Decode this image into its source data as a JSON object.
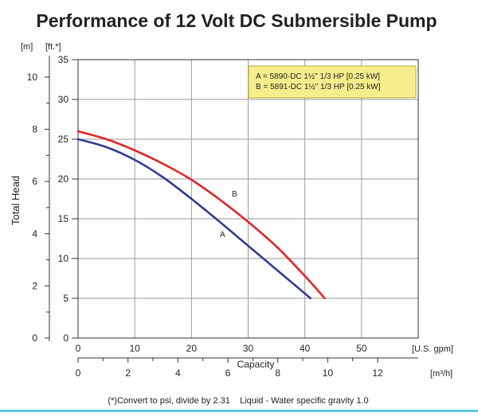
{
  "colors": {
    "grid": "#9a9a9a",
    "series_a": "#2f3d94",
    "series_b": "#e02525",
    "legend_fill": "#f6ee8c",
    "legend_border": "#b8ad3c",
    "accent_line": "#5ac8ee"
  },
  "chart_data": {
    "type": "line",
    "title": "Performance of 12 Volt DC Submersible Pump",
    "ylabel": "Total Head",
    "xlabel": "Capacity",
    "footnote": "(*)Convert to psi, divide by 2.31    Liquid - Water specific gravity 1.0",
    "y_ft": {
      "unit": "[ft.*]",
      "ticks": [
        0,
        5,
        10,
        15,
        20,
        25,
        30,
        35
      ],
      "ylim": [
        0,
        35
      ]
    },
    "y_m": {
      "unit": "[m]",
      "ticks": [
        0,
        2,
        4,
        6,
        8,
        10
      ]
    },
    "x_gpm": {
      "unit": "[U.S. gpm]",
      "ticks": [
        0,
        10,
        20,
        30,
        40,
        50
      ],
      "xlim": [
        0,
        60
      ]
    },
    "x_m3h": {
      "unit": "[m³/h]",
      "ticks": [
        0,
        2,
        4,
        6,
        8,
        10,
        12
      ]
    },
    "legend": {
      "a": "A = 5890-DC 1½\" 1/3 HP [0.25 kW]",
      "b": "B = 5891-DC 1½\" 1/3 HP [0.25 kW]"
    },
    "series": [
      {
        "name": "A",
        "x": [
          0,
          5,
          10,
          15,
          20,
          25,
          30,
          35,
          41
        ],
        "y": [
          25,
          24,
          22.4,
          20.2,
          17.5,
          14.6,
          11.6,
          8.6,
          5
        ]
      },
      {
        "name": "B",
        "x": [
          0,
          5,
          10,
          15,
          20,
          25,
          30,
          35,
          40,
          43.5
        ],
        "y": [
          26,
          25,
          23.6,
          21.9,
          19.9,
          17.4,
          14.6,
          11.5,
          7.8,
          5
        ]
      }
    ]
  }
}
